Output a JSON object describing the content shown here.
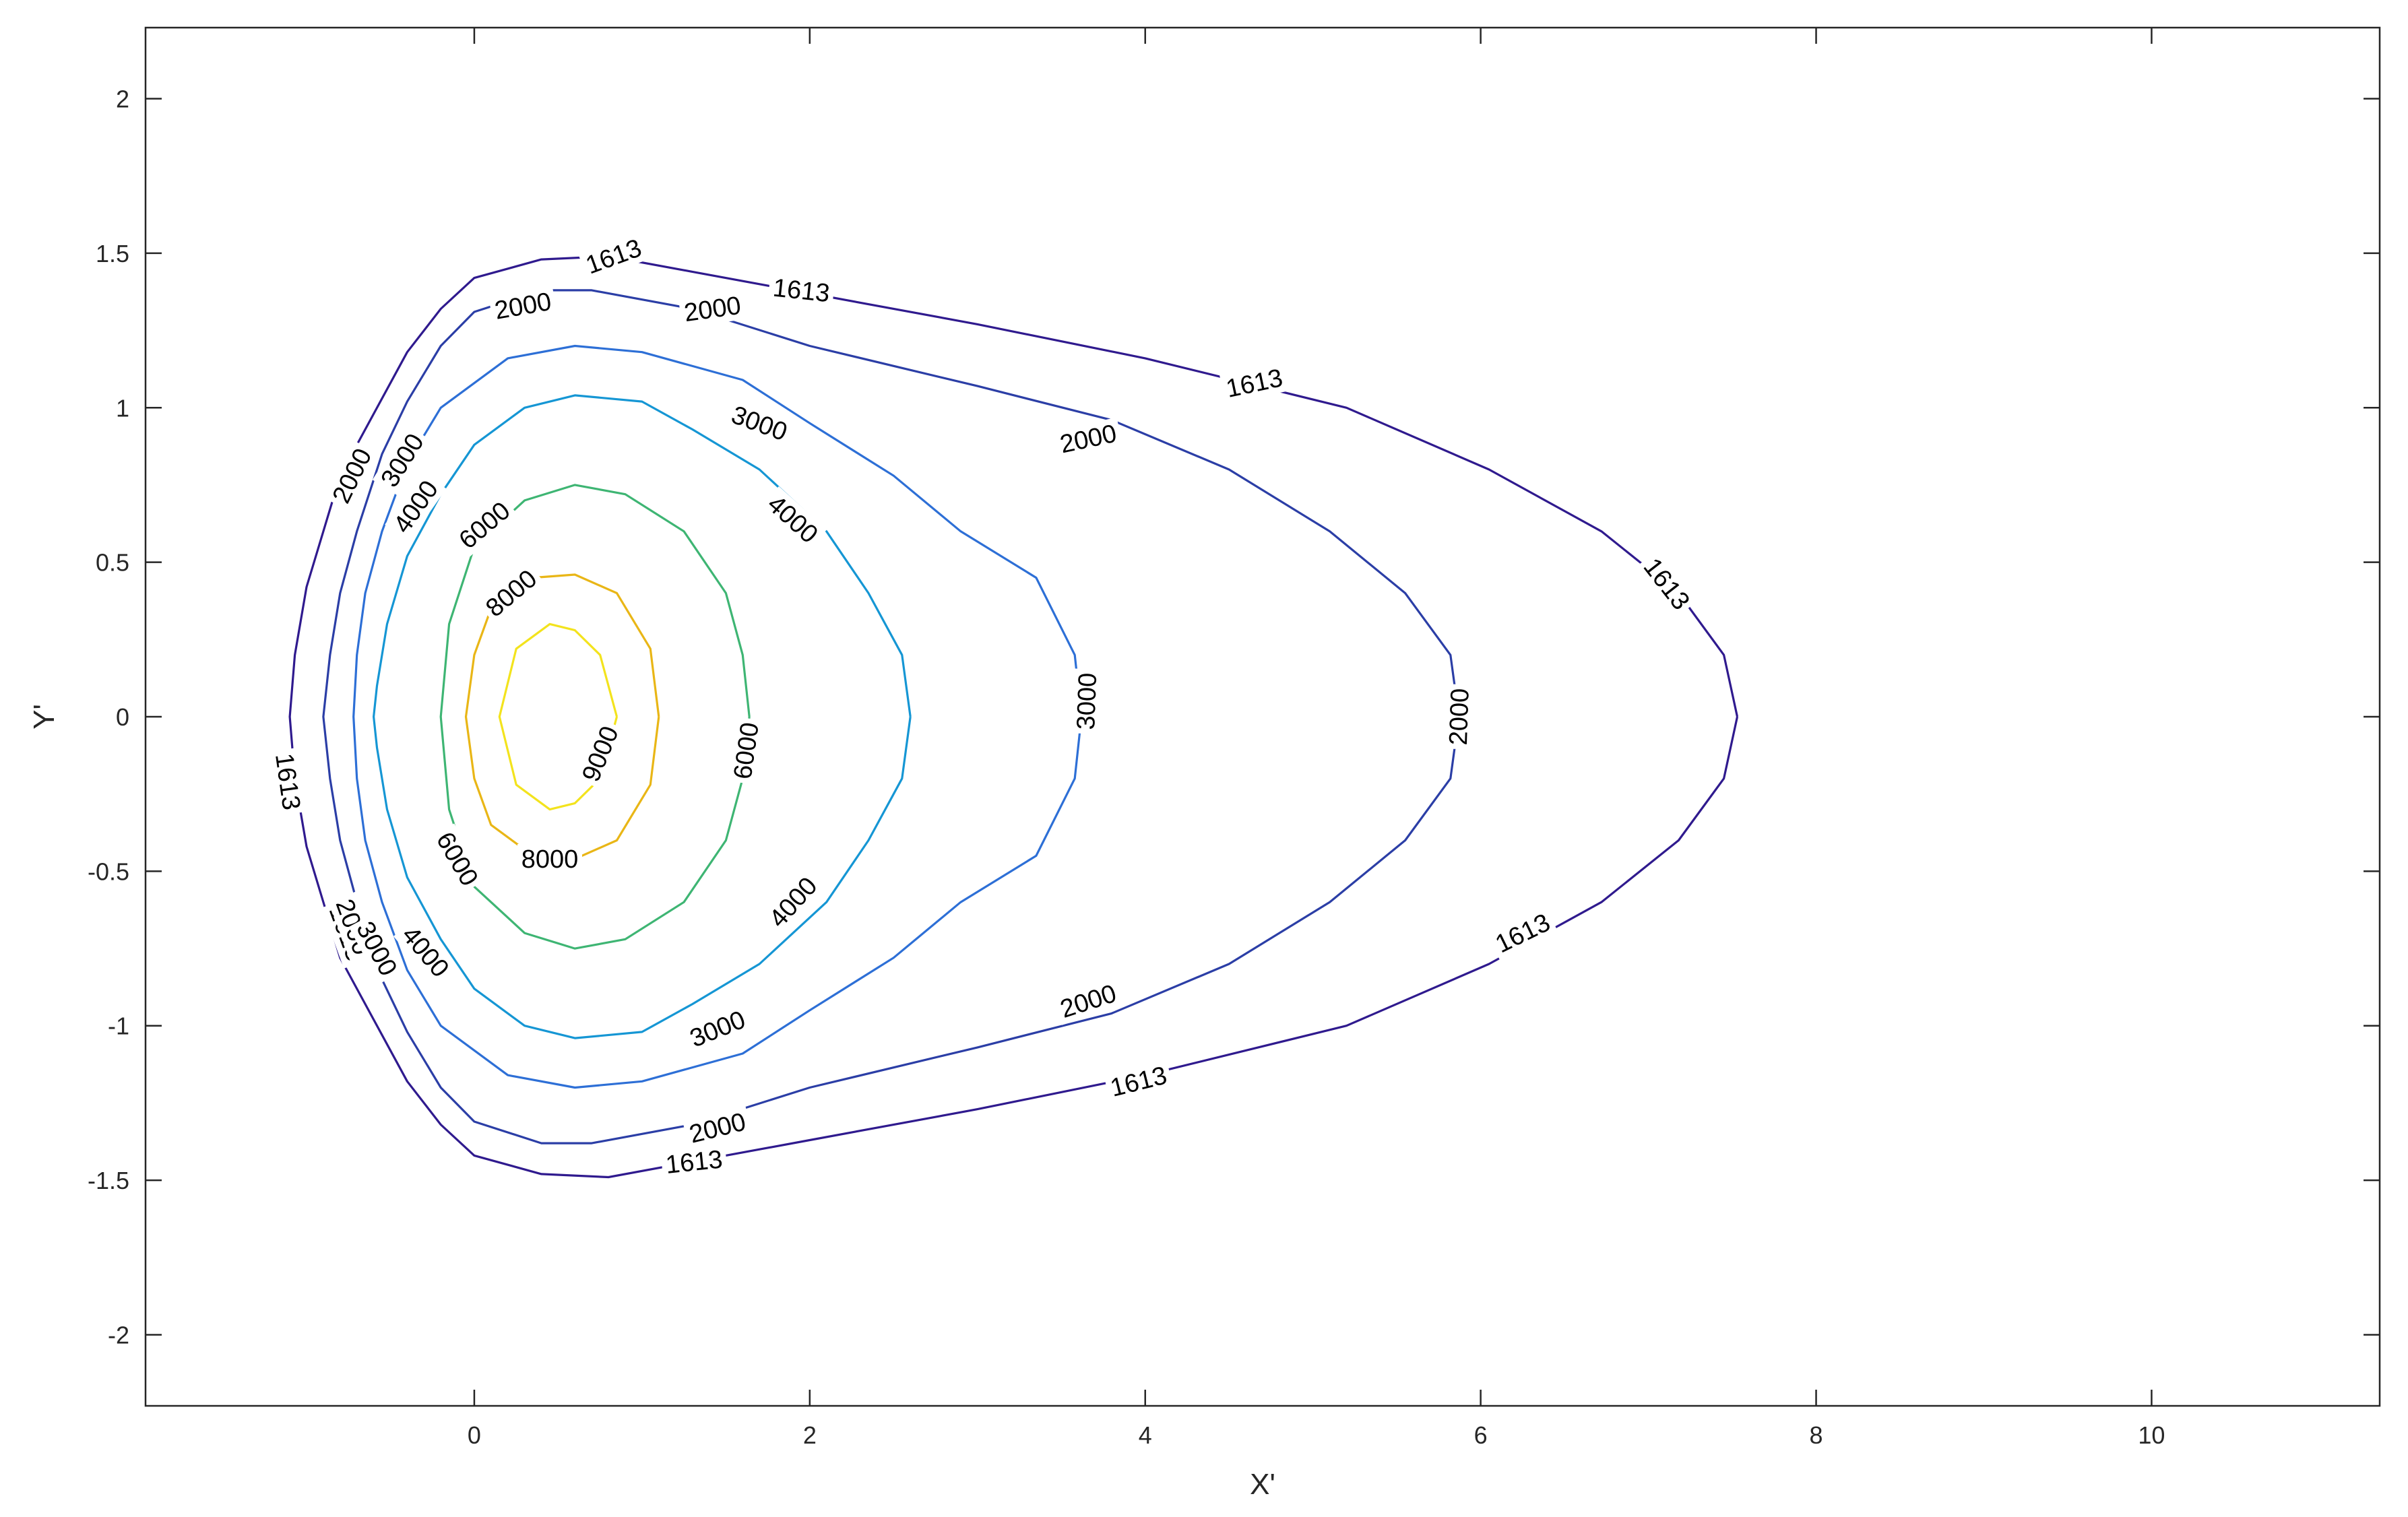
{
  "chart_data": {
    "type": "contour",
    "xlabel": "X'",
    "ylabel": "Y'",
    "xlim": [
      -1.96,
      11.36
    ],
    "ylim": [
      -2.23,
      2.23
    ],
    "xticks": [
      0,
      2,
      4,
      6,
      8,
      10
    ],
    "yticks": [
      -2,
      -1.5,
      -1,
      -0.5,
      0,
      0.5,
      1,
      1.5,
      2
    ],
    "xtick_labels": [
      "0",
      "2",
      "4",
      "6",
      "8",
      "10"
    ],
    "ytick_labels": [
      "-2",
      "-1.5",
      "-1",
      "-0.5",
      "0",
      "0.5",
      "1",
      "1.5",
      "2"
    ],
    "grid": false,
    "levels": [
      {
        "level": 1613,
        "label": "1613",
        "color": "#2f1a8e",
        "points": [
          [
            7.53,
            0
          ],
          [
            7.45,
            0.2
          ],
          [
            7.18,
            0.4
          ],
          [
            6.72,
            0.6
          ],
          [
            6.05,
            0.8
          ],
          [
            5.2,
            1.0
          ],
          [
            4.0,
            1.16
          ],
          [
            3.0,
            1.27
          ],
          [
            2.0,
            1.37
          ],
          [
            1.3,
            1.44
          ],
          [
            0.8,
            1.49
          ],
          [
            0.4,
            1.48
          ],
          [
            0.0,
            1.42
          ],
          [
            -0.2,
            1.32
          ],
          [
            -0.4,
            1.18
          ],
          [
            -0.6,
            0.98
          ],
          [
            -0.8,
            0.78
          ],
          [
            -0.9,
            0.6
          ],
          [
            -1.0,
            0.42
          ],
          [
            -1.07,
            0.2
          ],
          [
            -1.1,
            0.0
          ],
          [
            -1.07,
            -0.2
          ],
          [
            -1.0,
            -0.42
          ],
          [
            -0.9,
            -0.6
          ],
          [
            -0.8,
            -0.78
          ],
          [
            -0.6,
            -0.98
          ],
          [
            -0.4,
            -1.18
          ],
          [
            -0.2,
            -1.32
          ],
          [
            0.0,
            -1.42
          ],
          [
            0.4,
            -1.48
          ],
          [
            0.8,
            -1.49
          ],
          [
            1.3,
            -1.44
          ],
          [
            2.0,
            -1.37
          ],
          [
            3.0,
            -1.27
          ],
          [
            4.0,
            -1.16
          ],
          [
            5.2,
            -1.0
          ],
          [
            6.05,
            -0.8
          ],
          [
            6.72,
            -0.6
          ],
          [
            7.18,
            -0.4
          ],
          [
            7.45,
            -0.2
          ],
          [
            7.53,
            0
          ]
        ],
        "labels_at": [
          [
            0.83,
            1.49,
            -20
          ],
          [
            1.95,
            1.38,
            6
          ],
          [
            4.65,
            1.08,
            -12
          ],
          [
            7.11,
            0.43,
            52
          ],
          [
            -1.11,
            -0.21,
            82
          ],
          [
            -0.76,
            -0.7,
            70
          ],
          [
            1.31,
            -1.44,
            -6
          ],
          [
            3.96,
            -1.18,
            -14
          ],
          [
            6.25,
            -0.7,
            -26
          ]
        ]
      },
      {
        "level": 2000,
        "label": "2000",
        "color": "#2b3ea6",
        "points": [
          [
            5.87,
            0
          ],
          [
            5.82,
            0.2
          ],
          [
            5.55,
            0.4
          ],
          [
            5.1,
            0.6
          ],
          [
            4.5,
            0.8
          ],
          [
            3.8,
            0.96
          ],
          [
            3.0,
            1.07
          ],
          [
            2.0,
            1.2
          ],
          [
            1.3,
            1.32
          ],
          [
            0.7,
            1.38
          ],
          [
            0.4,
            1.38
          ],
          [
            0.0,
            1.31
          ],
          [
            -0.2,
            1.2
          ],
          [
            -0.4,
            1.02
          ],
          [
            -0.55,
            0.85
          ],
          [
            -0.7,
            0.6
          ],
          [
            -0.8,
            0.4
          ],
          [
            -0.86,
            0.2
          ],
          [
            -0.9,
            0.0
          ],
          [
            -0.86,
            -0.2
          ],
          [
            -0.8,
            -0.4
          ],
          [
            -0.7,
            -0.6
          ],
          [
            -0.55,
            -0.85
          ],
          [
            -0.4,
            -1.02
          ],
          [
            -0.2,
            -1.2
          ],
          [
            0.0,
            -1.31
          ],
          [
            0.4,
            -1.38
          ],
          [
            0.7,
            -1.38
          ],
          [
            1.3,
            -1.32
          ],
          [
            2.0,
            -1.2
          ],
          [
            3.0,
            -1.07
          ],
          [
            3.8,
            -0.96
          ],
          [
            4.5,
            -0.8
          ],
          [
            5.1,
            -0.6
          ],
          [
            5.55,
            -0.4
          ],
          [
            5.82,
            -0.2
          ],
          [
            5.87,
            0
          ]
        ],
        "labels_at": [
          [
            0.29,
            1.33,
            -10
          ],
          [
            1.42,
            1.32,
            -8
          ],
          [
            3.66,
            0.9,
            -12
          ],
          [
            5.87,
            0.0,
            -88
          ],
          [
            -0.73,
            0.78,
            -64
          ],
          [
            -0.72,
            -0.68,
            70
          ],
          [
            1.45,
            -1.33,
            -14
          ],
          [
            3.66,
            -0.92,
            -18
          ]
        ]
      },
      {
        "level": 3000,
        "label": "3000",
        "color": "#2d6fd6",
        "points": [
          [
            3.62,
            0
          ],
          [
            3.58,
            0.2
          ],
          [
            3.35,
            0.45
          ],
          [
            2.9,
            0.6
          ],
          [
            2.5,
            0.78
          ],
          [
            2.0,
            0.95
          ],
          [
            1.6,
            1.09
          ],
          [
            1.0,
            1.18
          ],
          [
            0.6,
            1.2
          ],
          [
            0.2,
            1.16
          ],
          [
            -0.2,
            1.0
          ],
          [
            -0.4,
            0.82
          ],
          [
            -0.55,
            0.6
          ],
          [
            -0.65,
            0.4
          ],
          [
            -0.7,
            0.2
          ],
          [
            -0.72,
            0.0
          ],
          [
            -0.7,
            -0.2
          ],
          [
            -0.65,
            -0.4
          ],
          [
            -0.55,
            -0.6
          ],
          [
            -0.4,
            -0.82
          ],
          [
            -0.2,
            -1.0
          ],
          [
            0.2,
            -1.16
          ],
          [
            0.6,
            -1.2
          ],
          [
            1.0,
            -1.18
          ],
          [
            1.6,
            -1.09
          ],
          [
            2.0,
            -0.95
          ],
          [
            2.5,
            -0.78
          ],
          [
            2.9,
            -0.6
          ],
          [
            3.35,
            -0.45
          ],
          [
            3.58,
            -0.2
          ],
          [
            3.62,
            0
          ]
        ],
        "labels_at": [
          [
            -0.43,
            0.83,
            -58
          ],
          [
            1.7,
            0.95,
            20
          ],
          [
            3.65,
            0.05,
            -88
          ],
          [
            -0.58,
            -0.75,
            62
          ],
          [
            1.45,
            -1.01,
            -22
          ]
        ]
      },
      {
        "level": 4000,
        "label": "4000",
        "color": "#1596d4",
        "points": [
          [
            2.6,
            0
          ],
          [
            2.55,
            0.2
          ],
          [
            2.35,
            0.4
          ],
          [
            2.1,
            0.6
          ],
          [
            1.7,
            0.8
          ],
          [
            1.3,
            0.93
          ],
          [
            1.0,
            1.02
          ],
          [
            0.6,
            1.04
          ],
          [
            0.3,
            1.0
          ],
          [
            0.0,
            0.88
          ],
          [
            -0.2,
            0.72
          ],
          [
            -0.4,
            0.52
          ],
          [
            -0.52,
            0.3
          ],
          [
            -0.58,
            0.1
          ],
          [
            -0.6,
            0.0
          ],
          [
            -0.58,
            -0.1
          ],
          [
            -0.52,
            -0.3
          ],
          [
            -0.4,
            -0.52
          ],
          [
            -0.2,
            -0.72
          ],
          [
            0.0,
            -0.88
          ],
          [
            0.3,
            -1.0
          ],
          [
            0.6,
            -1.04
          ],
          [
            1.0,
            -1.02
          ],
          [
            1.3,
            -0.93
          ],
          [
            1.7,
            -0.8
          ],
          [
            2.1,
            -0.6
          ],
          [
            2.35,
            -0.4
          ],
          [
            2.55,
            -0.2
          ],
          [
            2.6,
            0
          ]
        ],
        "labels_at": [
          [
            -0.35,
            0.68,
            -55
          ],
          [
            1.9,
            0.64,
            42
          ],
          [
            -0.29,
            -0.76,
            50
          ],
          [
            1.9,
            -0.6,
            -48
          ]
        ]
      },
      {
        "level": 6000,
        "label": "6000",
        "color": "#3eb573",
        "points": [
          [
            1.64,
            0
          ],
          [
            1.6,
            0.2
          ],
          [
            1.5,
            0.4
          ],
          [
            1.25,
            0.6
          ],
          [
            0.9,
            0.72
          ],
          [
            0.6,
            0.75
          ],
          [
            0.3,
            0.7
          ],
          [
            0.0,
            0.55
          ],
          [
            -0.15,
            0.3
          ],
          [
            -0.2,
            0.0
          ],
          [
            -0.15,
            -0.3
          ],
          [
            0.0,
            -0.55
          ],
          [
            0.3,
            -0.7
          ],
          [
            0.6,
            -0.75
          ],
          [
            0.9,
            -0.72
          ],
          [
            1.25,
            -0.6
          ],
          [
            1.5,
            -0.4
          ],
          [
            1.6,
            -0.2
          ],
          [
            1.64,
            0
          ]
        ],
        "labels_at": [
          [
            0.06,
            0.62,
            -40
          ],
          [
            1.62,
            -0.11,
            -82
          ],
          [
            -0.1,
            -0.46,
            60
          ]
        ]
      },
      {
        "level": 8000,
        "label": "8000",
        "color": "#e9b616",
        "points": [
          [
            1.1,
            0
          ],
          [
            1.05,
            0.22
          ],
          [
            0.85,
            0.4
          ],
          [
            0.6,
            0.46
          ],
          [
            0.35,
            0.45
          ],
          [
            0.1,
            0.35
          ],
          [
            0.0,
            0.2
          ],
          [
            -0.05,
            0.0
          ],
          [
            0.0,
            -0.2
          ],
          [
            0.1,
            -0.35
          ],
          [
            0.35,
            -0.45
          ],
          [
            0.6,
            -0.46
          ],
          [
            0.85,
            -0.4
          ],
          [
            1.05,
            -0.22
          ],
          [
            1.1,
            0
          ]
        ],
        "labels_at": [
          [
            0.22,
            0.4,
            -40
          ],
          [
            0.45,
            -0.46,
            0
          ]
        ]
      },
      {
        "level": 9000,
        "label": "9000",
        "color": "#f3e31d",
        "points": [
          [
            0.85,
            0
          ],
          [
            0.75,
            0.2
          ],
          [
            0.6,
            0.28
          ],
          [
            0.45,
            0.3
          ],
          [
            0.25,
            0.22
          ],
          [
            0.15,
            0.0
          ],
          [
            0.25,
            -0.22
          ],
          [
            0.45,
            -0.3
          ],
          [
            0.6,
            -0.28
          ],
          [
            0.75,
            -0.2
          ],
          [
            0.85,
            0
          ]
        ],
        "labels_at": [
          [
            0.75,
            -0.12,
            -68
          ]
        ]
      }
    ]
  }
}
